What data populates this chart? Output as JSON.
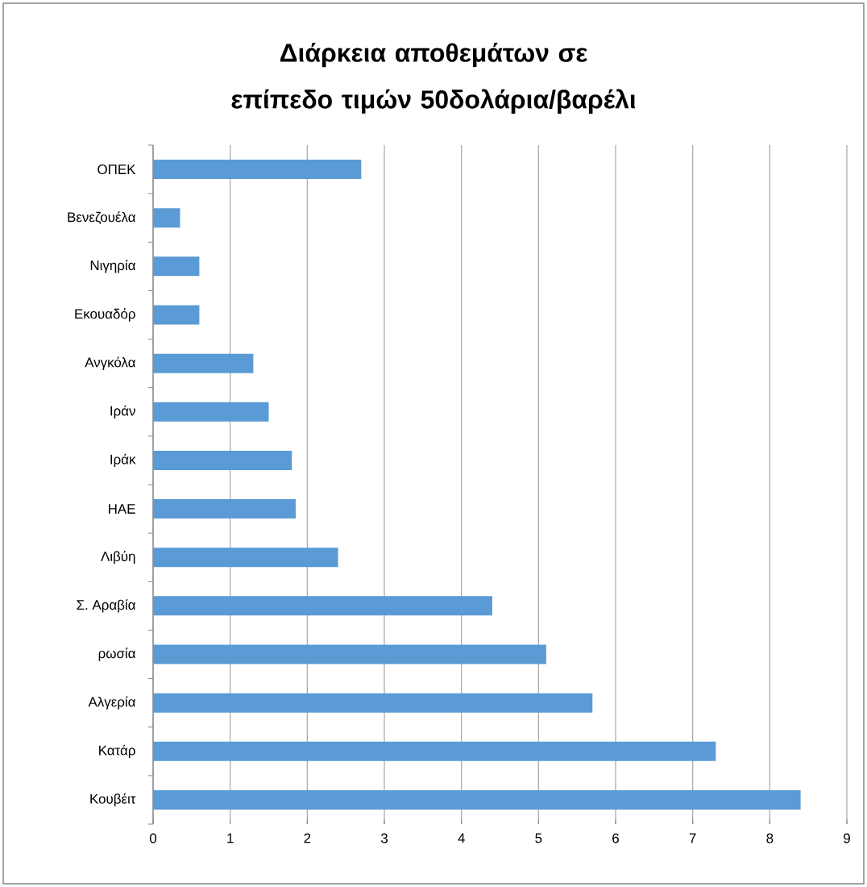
{
  "chart_data": {
    "type": "bar",
    "orientation": "horizontal",
    "title": "Διάρκεια αποθεμάτων σε επίπεδο τιμών 50δολάρια/βαρέλι",
    "categories": [
      "ΟΠΕΚ",
      "Βενεζουέλα",
      "Νιγηρία",
      "Εκουαδόρ",
      "Ανγκόλα",
      "Ιράν",
      "Ιράκ",
      "ΗΑΕ",
      "Λιβύη",
      "Σ. Αραβία",
      "ρωσία",
      "Αλγερία",
      "Κατάρ",
      "Κουβέιτ"
    ],
    "values": [
      2.7,
      0.35,
      0.6,
      0.6,
      1.3,
      1.5,
      1.8,
      1.85,
      2.4,
      4.4,
      5.1,
      5.7,
      7.3,
      8.4
    ],
    "color": "#5b9bd5",
    "xlim": [
      0,
      9
    ],
    "xticks": [
      0,
      1,
      2,
      3,
      4,
      5,
      6,
      7,
      8,
      9
    ],
    "grid": "x"
  }
}
